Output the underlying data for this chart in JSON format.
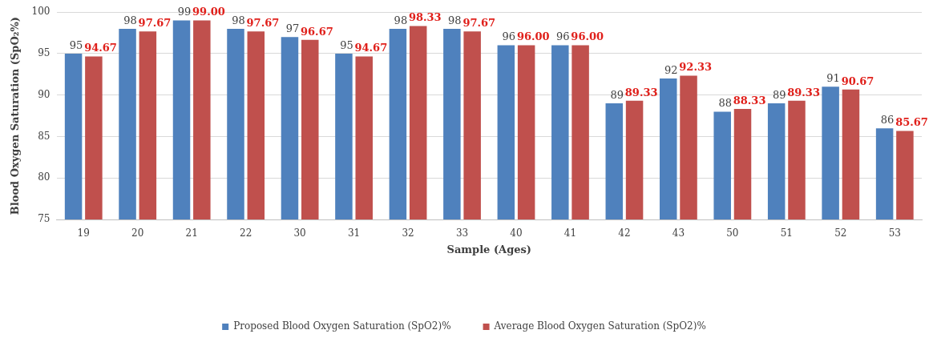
{
  "chart_data": {
    "type": "bar",
    "xlabel": "Sample (Ages)",
    "ylabel": "Blood Oxygen Saturation (SpO₂%)",
    "categories": [
      "19",
      "20",
      "21",
      "22",
      "30",
      "31",
      "32",
      "33",
      "40",
      "41",
      "42",
      "43",
      "50",
      "51",
      "52",
      "53"
    ],
    "series": [
      {
        "name": "Proposed Blood Oxygen Saturation (SpO2)%",
        "color": "#4f81bd",
        "values": [
          95,
          98,
          99,
          98,
          97,
          95,
          98,
          98,
          96,
          96,
          89,
          92,
          88,
          89,
          91,
          86
        ],
        "value_labels": [
          "95",
          "98",
          "99",
          "98",
          "97",
          "95",
          "98",
          "98",
          "96",
          "96",
          "89",
          "92",
          "88",
          "89",
          "91",
          "86"
        ]
      },
      {
        "name": "Average Blood Oxygen Saturation (SpO2)%",
        "color": "#c0504d",
        "values": [
          94.67,
          97.67,
          99.0,
          97.67,
          96.67,
          94.67,
          98.33,
          97.67,
          96.0,
          96.0,
          89.33,
          92.33,
          88.33,
          89.33,
          90.67,
          85.67
        ],
        "value_labels": [
          "94.67",
          "97.67",
          "99.00",
          "97.67",
          "96.67",
          "94.67",
          "98.33",
          "97.67",
          "96.00",
          "96.00",
          "89.33",
          "92.33",
          "88.33",
          "89.33",
          "90.67",
          "85.67"
        ]
      }
    ],
    "ylim": [
      75,
      100
    ],
    "yticks": [
      75,
      80,
      85,
      90,
      95,
      100
    ],
    "grid": "y",
    "legend": "bottom"
  }
}
